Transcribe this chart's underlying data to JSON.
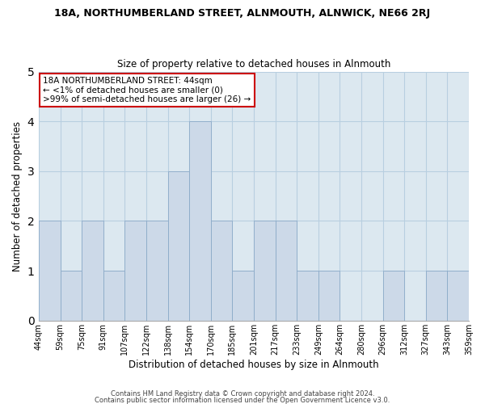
{
  "title_line1": "18A, NORTHUMBERLAND STREET, ALNMOUTH, ALNWICK, NE66 2RJ",
  "title_line2": "Size of property relative to detached houses in Alnmouth",
  "xlabel": "Distribution of detached houses by size in Alnmouth",
  "ylabel": "Number of detached properties",
  "bin_edges": [
    "44sqm",
    "59sqm",
    "75sqm",
    "91sqm",
    "107sqm",
    "122sqm",
    "138sqm",
    "154sqm",
    "170sqm",
    "185sqm",
    "201sqm",
    "217sqm",
    "233sqm",
    "249sqm",
    "264sqm",
    "280sqm",
    "296sqm",
    "312sqm",
    "327sqm",
    "343sqm",
    "359sqm"
  ],
  "bar_heights": [
    2,
    1,
    2,
    1,
    2,
    2,
    3,
    4,
    2,
    1,
    2,
    2,
    1,
    1,
    0,
    0,
    1,
    0,
    1,
    1
  ],
  "bar_color": "#ccd9e8",
  "bar_edge_color": "#8aaac8",
  "plot_bg_color": "#dce8f0",
  "ylim": [
    0,
    5
  ],
  "yticks": [
    0,
    1,
    2,
    3,
    4,
    5
  ],
  "annotation_title": "18A NORTHUMBERLAND STREET: 44sqm",
  "annotation_line1": "← <1% of detached houses are smaller (0)",
  "annotation_line2": ">99% of semi-detached houses are larger (26) →",
  "annotation_box_color": "#ffffff",
  "annotation_box_edge_color": "#cc0000",
  "footer_line1": "Contains HM Land Registry data © Crown copyright and database right 2024.",
  "footer_line2": "Contains public sector information licensed under the Open Government Licence v3.0.",
  "bg_color": "#ffffff",
  "grid_color": "#b8cfe0",
  "num_bins": 20
}
